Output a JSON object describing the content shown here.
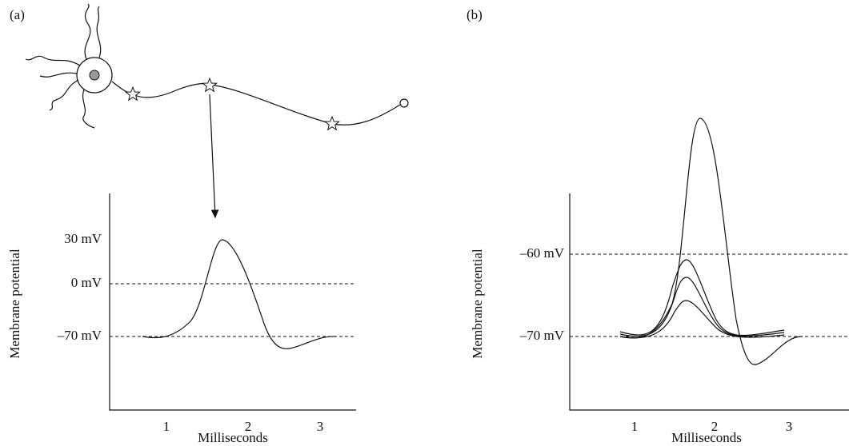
{
  "panels": [
    {
      "label": "(a)",
      "y_axis_label": "Membrane potential",
      "y_tick_labels": [
        "30 mV",
        "0 mV",
        "–70 mV"
      ],
      "x_tick_labels": [
        "1",
        "2",
        "3"
      ],
      "x_axis_label": "Milliseconds"
    },
    {
      "label": "(b)",
      "y_axis_label": "Membrane potential",
      "y_tick_labels": [
        "–60 mV",
        "–70 mV"
      ],
      "x_tick_labels": [
        "1",
        "2",
        "3"
      ],
      "x_axis_label": "Milliseconds"
    }
  ]
}
